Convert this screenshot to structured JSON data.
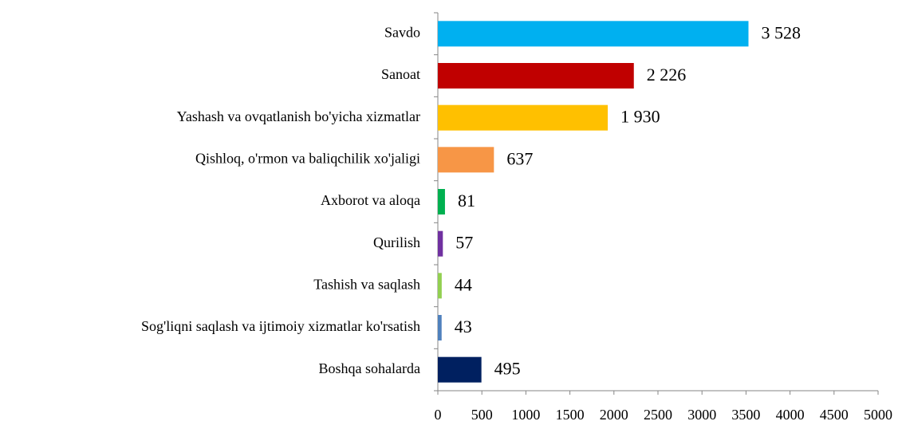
{
  "chart_data": {
    "type": "bar",
    "orientation": "horizontal",
    "categories": [
      "Savdo",
      "Sanoat",
      "Yashash va ovqatlanish bo'yicha xizmatlar",
      "Qishloq, o'rmon va baliqchilik xo'jaligi",
      "Axborot va aloqa",
      "Qurilish",
      "Tashish va saqlash",
      "Sog'liqni saqlash va ijtimoiy xizmatlar ko'rsatish",
      "Boshqa sohalarda"
    ],
    "values": [
      3528,
      2226,
      1930,
      637,
      81,
      57,
      44,
      43,
      495
    ],
    "value_labels": [
      "3 528",
      "2 226",
      "1 930",
      "637",
      "81",
      "57",
      "44",
      "43",
      "495"
    ],
    "colors": [
      "#00b0f0",
      "#c00000",
      "#ffc000",
      "#f79646",
      "#00b050",
      "#7030a0",
      "#92d050",
      "#4f81bd",
      "#002060"
    ],
    "xlim": [
      0,
      5000
    ],
    "xticks": [
      0,
      500,
      1000,
      1500,
      2000,
      2500,
      3000,
      3500,
      4000,
      4500,
      5000
    ]
  }
}
